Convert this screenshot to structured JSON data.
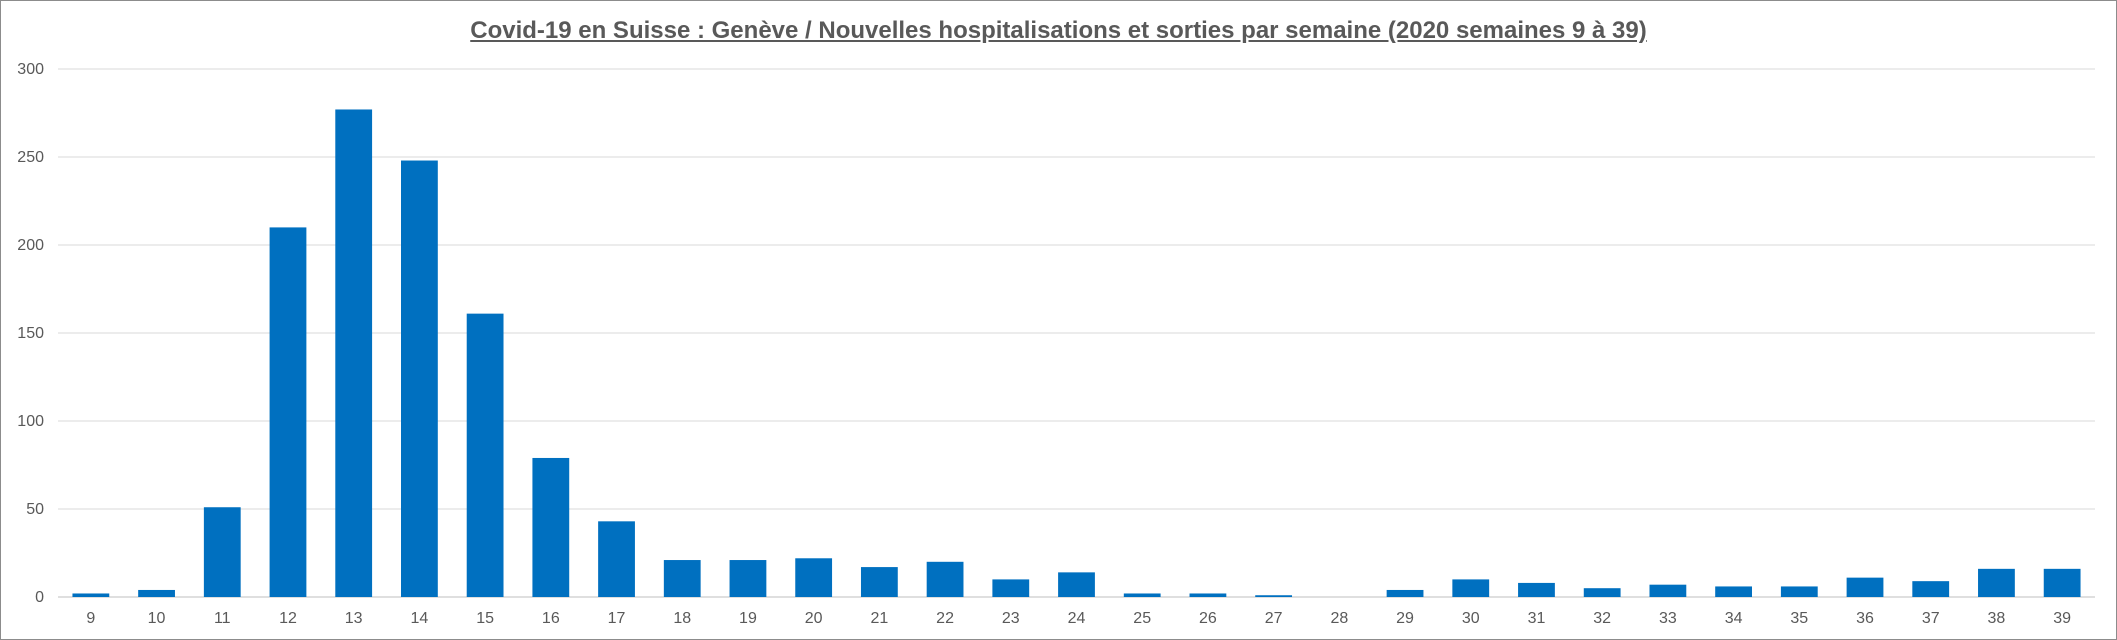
{
  "chart_data": {
    "type": "bar",
    "title": "Covid-19 en Suisse : Genève / Nouvelles hospitalisations et sorties par semaine (2020 semaines 9 à 39)",
    "xlabel": "",
    "ylabel": "",
    "ylim": [
      0,
      300
    ],
    "yticks": [
      0,
      50,
      100,
      150,
      200,
      250,
      300
    ],
    "grid": true,
    "legend": "none",
    "bar_color": "#0070C0",
    "categories": [
      "9",
      "10",
      "11",
      "12",
      "13",
      "14",
      "15",
      "16",
      "17",
      "18",
      "19",
      "20",
      "21",
      "22",
      "23",
      "24",
      "25",
      "26",
      "27",
      "28",
      "29",
      "30",
      "31",
      "32",
      "33",
      "34",
      "35",
      "36",
      "37",
      "38",
      "39"
    ],
    "values": [
      2,
      4,
      51,
      210,
      277,
      248,
      161,
      79,
      43,
      21,
      21,
      22,
      17,
      20,
      10,
      14,
      2,
      2,
      1,
      0,
      4,
      10,
      8,
      5,
      7,
      6,
      6,
      11,
      9,
      16,
      16
    ]
  }
}
